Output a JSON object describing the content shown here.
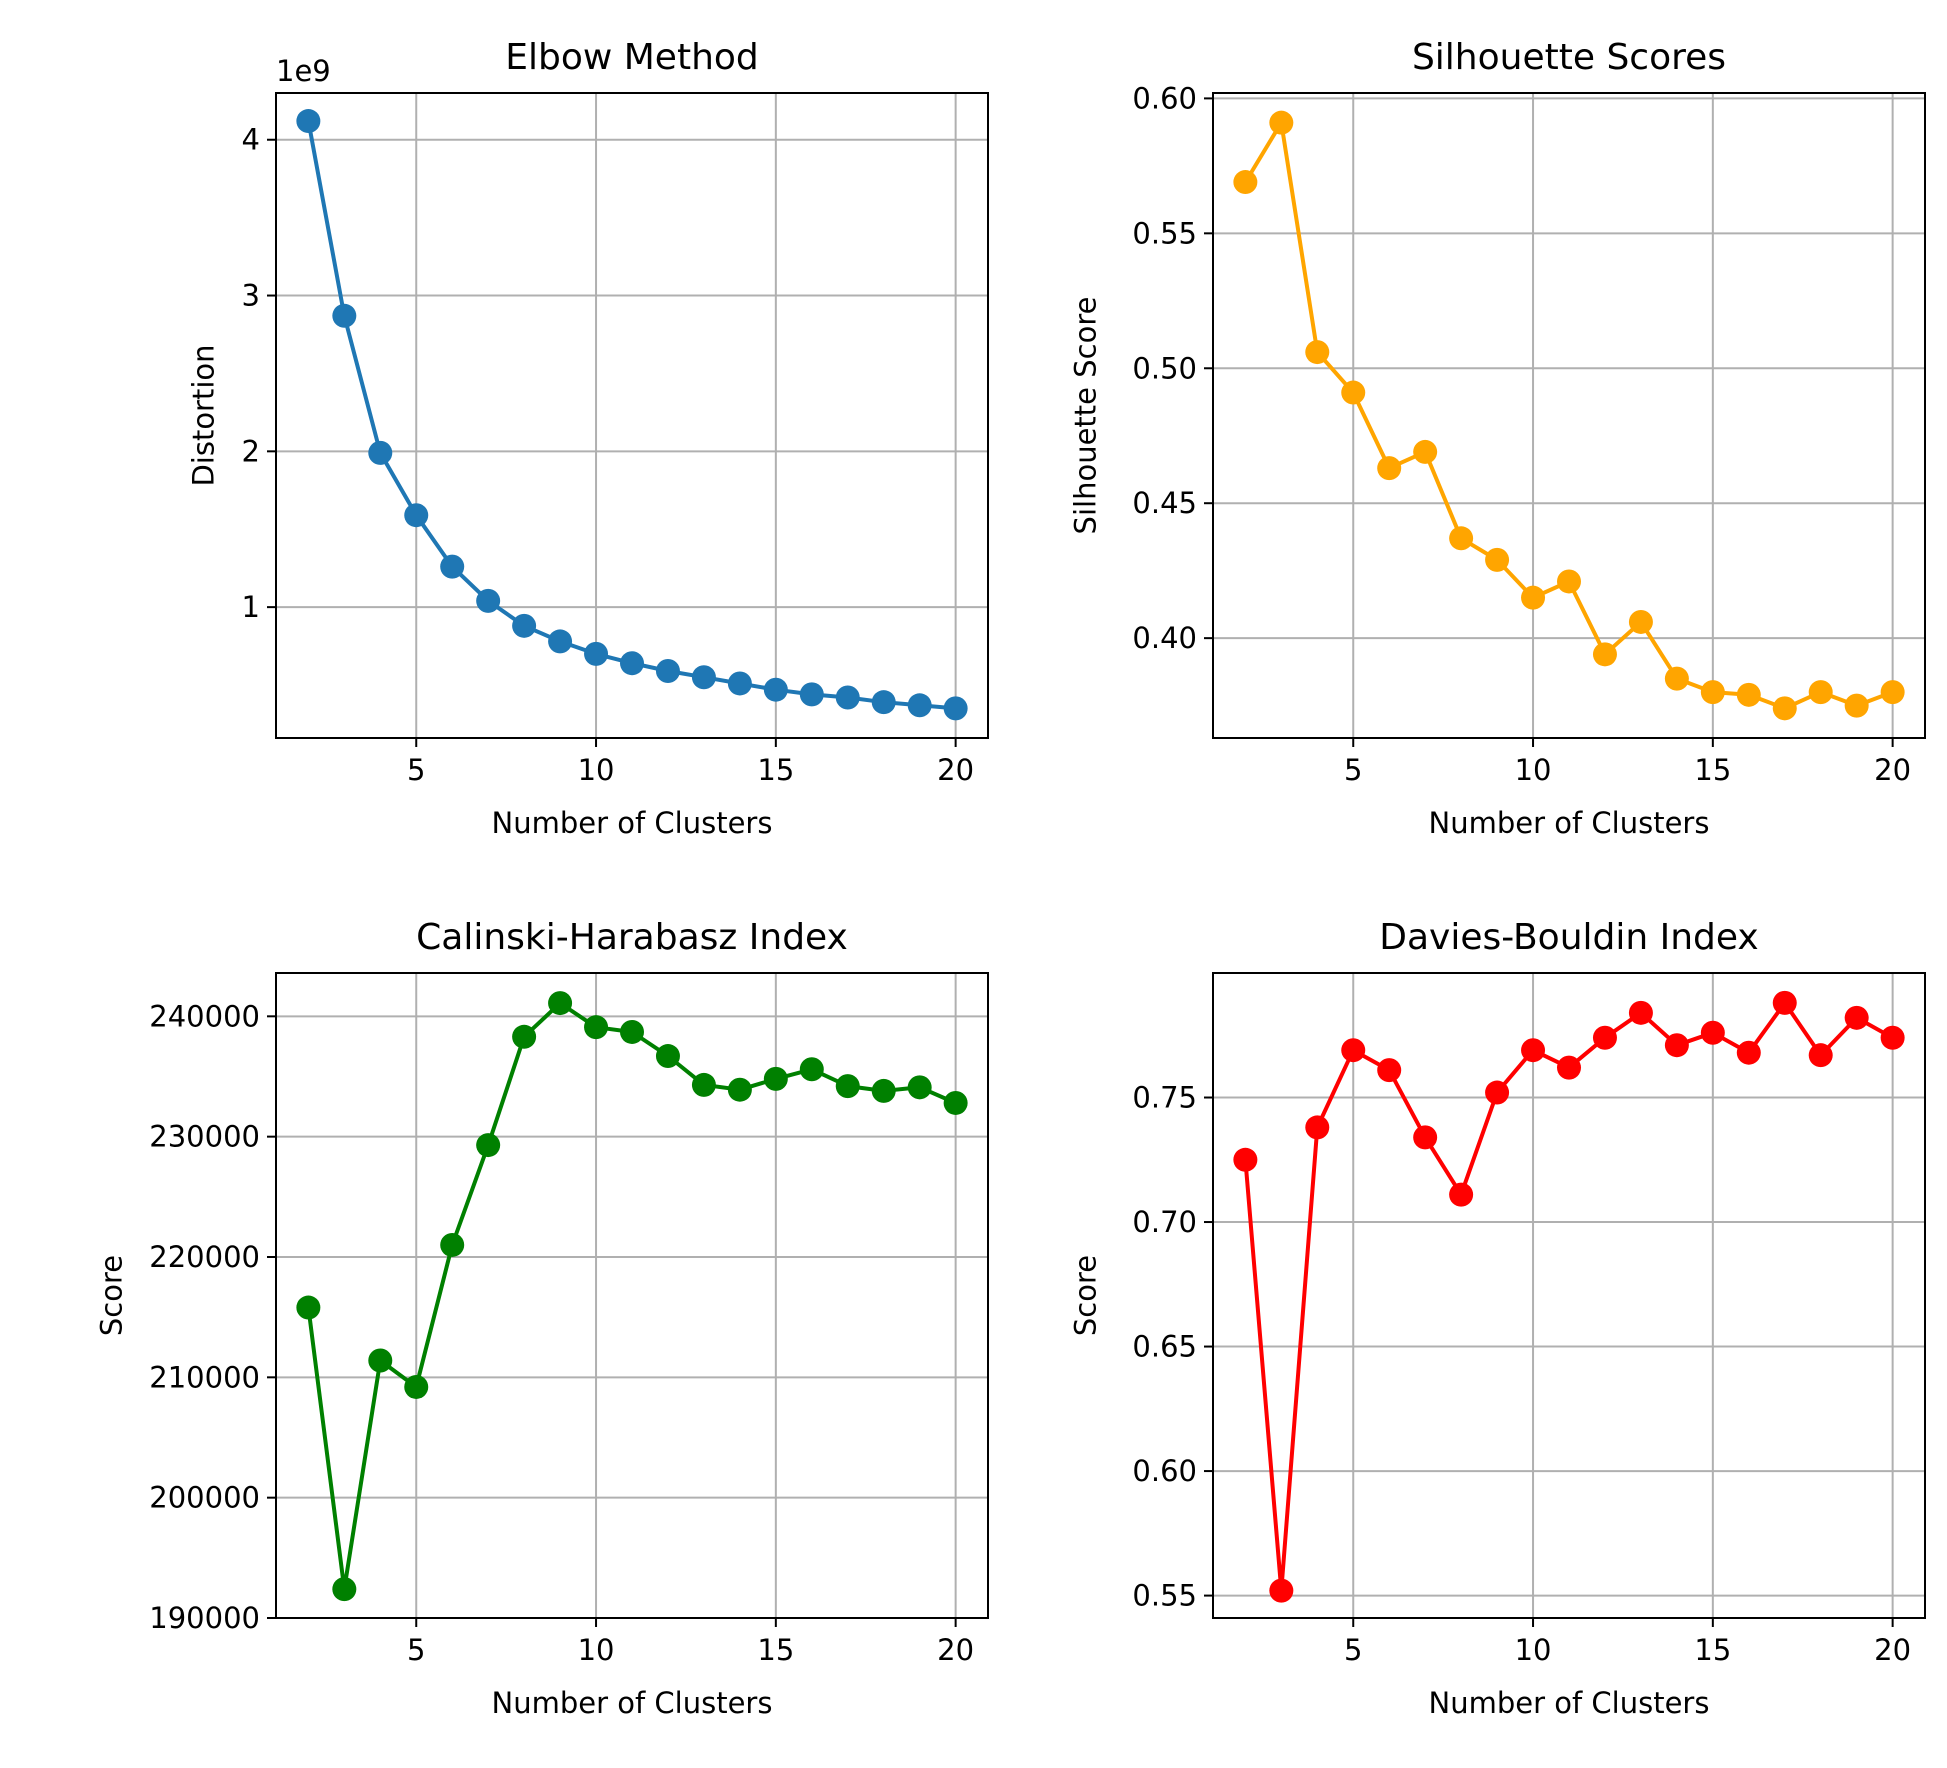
{
  "chart_data": [
    {
      "type": "line",
      "title": "Elbow Method",
      "xlabel": "Number of Clusters",
      "ylabel": "Distortion",
      "offset_text": "1e9",
      "color": "#1f77b4",
      "grid": true,
      "xlim": [
        1.1,
        20.9
      ],
      "ylim": [
        0.16,
        4.3
      ],
      "xticks": [
        5,
        10,
        15,
        20
      ],
      "xtick_labels": [
        "5",
        "10",
        "15",
        "20"
      ],
      "yticks": [
        1,
        2,
        3,
        4
      ],
      "ytick_labels": [
        "1",
        "2",
        "3",
        "4"
      ],
      "x": [
        2,
        3,
        4,
        5,
        6,
        7,
        8,
        9,
        10,
        11,
        12,
        13,
        14,
        15,
        16,
        17,
        18,
        19,
        20
      ],
      "y": [
        4.12,
        2.87,
        1.99,
        1.59,
        1.26,
        1.04,
        0.88,
        0.78,
        0.7,
        0.64,
        0.59,
        0.55,
        0.51,
        0.47,
        0.44,
        0.42,
        0.39,
        0.37,
        0.35
      ]
    },
    {
      "type": "line",
      "title": "Silhouette Scores",
      "xlabel": "Number of Clusters",
      "ylabel": "Silhouette Score",
      "color": "#ffa500",
      "grid": true,
      "xlim": [
        1.1,
        20.9
      ],
      "ylim": [
        0.363,
        0.602
      ],
      "xticks": [
        5,
        10,
        15,
        20
      ],
      "xtick_labels": [
        "5",
        "10",
        "15",
        "20"
      ],
      "yticks": [
        0.4,
        0.45,
        0.5,
        0.55,
        0.6
      ],
      "ytick_labels": [
        "0.40",
        "0.45",
        "0.50",
        "0.55",
        "0.60"
      ],
      "x": [
        2,
        3,
        4,
        5,
        6,
        7,
        8,
        9,
        10,
        11,
        12,
        13,
        14,
        15,
        16,
        17,
        18,
        19,
        20
      ],
      "y": [
        0.569,
        0.591,
        0.506,
        0.491,
        0.463,
        0.469,
        0.437,
        0.429,
        0.415,
        0.421,
        0.394,
        0.406,
        0.385,
        0.38,
        0.379,
        0.374,
        0.38,
        0.375,
        0.38
      ]
    },
    {
      "type": "line",
      "title": "Calinski-Harabasz Index",
      "xlabel": "Number of Clusters",
      "ylabel": "Score",
      "color": "#008000",
      "grid": true,
      "xlim": [
        1.1,
        20.9
      ],
      "ylim": [
        190000,
        243600
      ],
      "xticks": [
        5,
        10,
        15,
        20
      ],
      "xtick_labels": [
        "5",
        "10",
        "15",
        "20"
      ],
      "yticks": [
        190000,
        200000,
        210000,
        220000,
        230000,
        240000
      ],
      "ytick_labels": [
        "190000",
        "200000",
        "210000",
        "220000",
        "230000",
        "240000"
      ],
      "x": [
        2,
        3,
        4,
        5,
        6,
        7,
        8,
        9,
        10,
        11,
        12,
        13,
        14,
        15,
        16,
        17,
        18,
        19,
        20
      ],
      "y": [
        215800,
        192400,
        211400,
        209200,
        221000,
        229300,
        238300,
        241100,
        239100,
        238700,
        236700,
        234300,
        233900,
        234800,
        235600,
        234200,
        233800,
        234100,
        232800
      ]
    },
    {
      "type": "line",
      "title": "Davies-Bouldin Index",
      "xlabel": "Number of Clusters",
      "ylabel": "Score",
      "color": "#ff0000",
      "grid": true,
      "xlim": [
        1.1,
        20.9
      ],
      "ylim": [
        0.541,
        0.8
      ],
      "xticks": [
        5,
        10,
        15,
        20
      ],
      "xtick_labels": [
        "5",
        "10",
        "15",
        "20"
      ],
      "yticks": [
        0.55,
        0.6,
        0.65,
        0.7,
        0.75
      ],
      "ytick_labels": [
        "0.55",
        "0.60",
        "0.65",
        "0.70",
        "0.75"
      ],
      "x": [
        2,
        3,
        4,
        5,
        6,
        7,
        8,
        9,
        10,
        11,
        12,
        13,
        14,
        15,
        16,
        17,
        18,
        19,
        20
      ],
      "y": [
        0.725,
        0.552,
        0.738,
        0.769,
        0.761,
        0.734,
        0.711,
        0.752,
        0.769,
        0.762,
        0.774,
        0.784,
        0.771,
        0.776,
        0.768,
        0.788,
        0.767,
        0.782,
        0.774
      ]
    }
  ]
}
